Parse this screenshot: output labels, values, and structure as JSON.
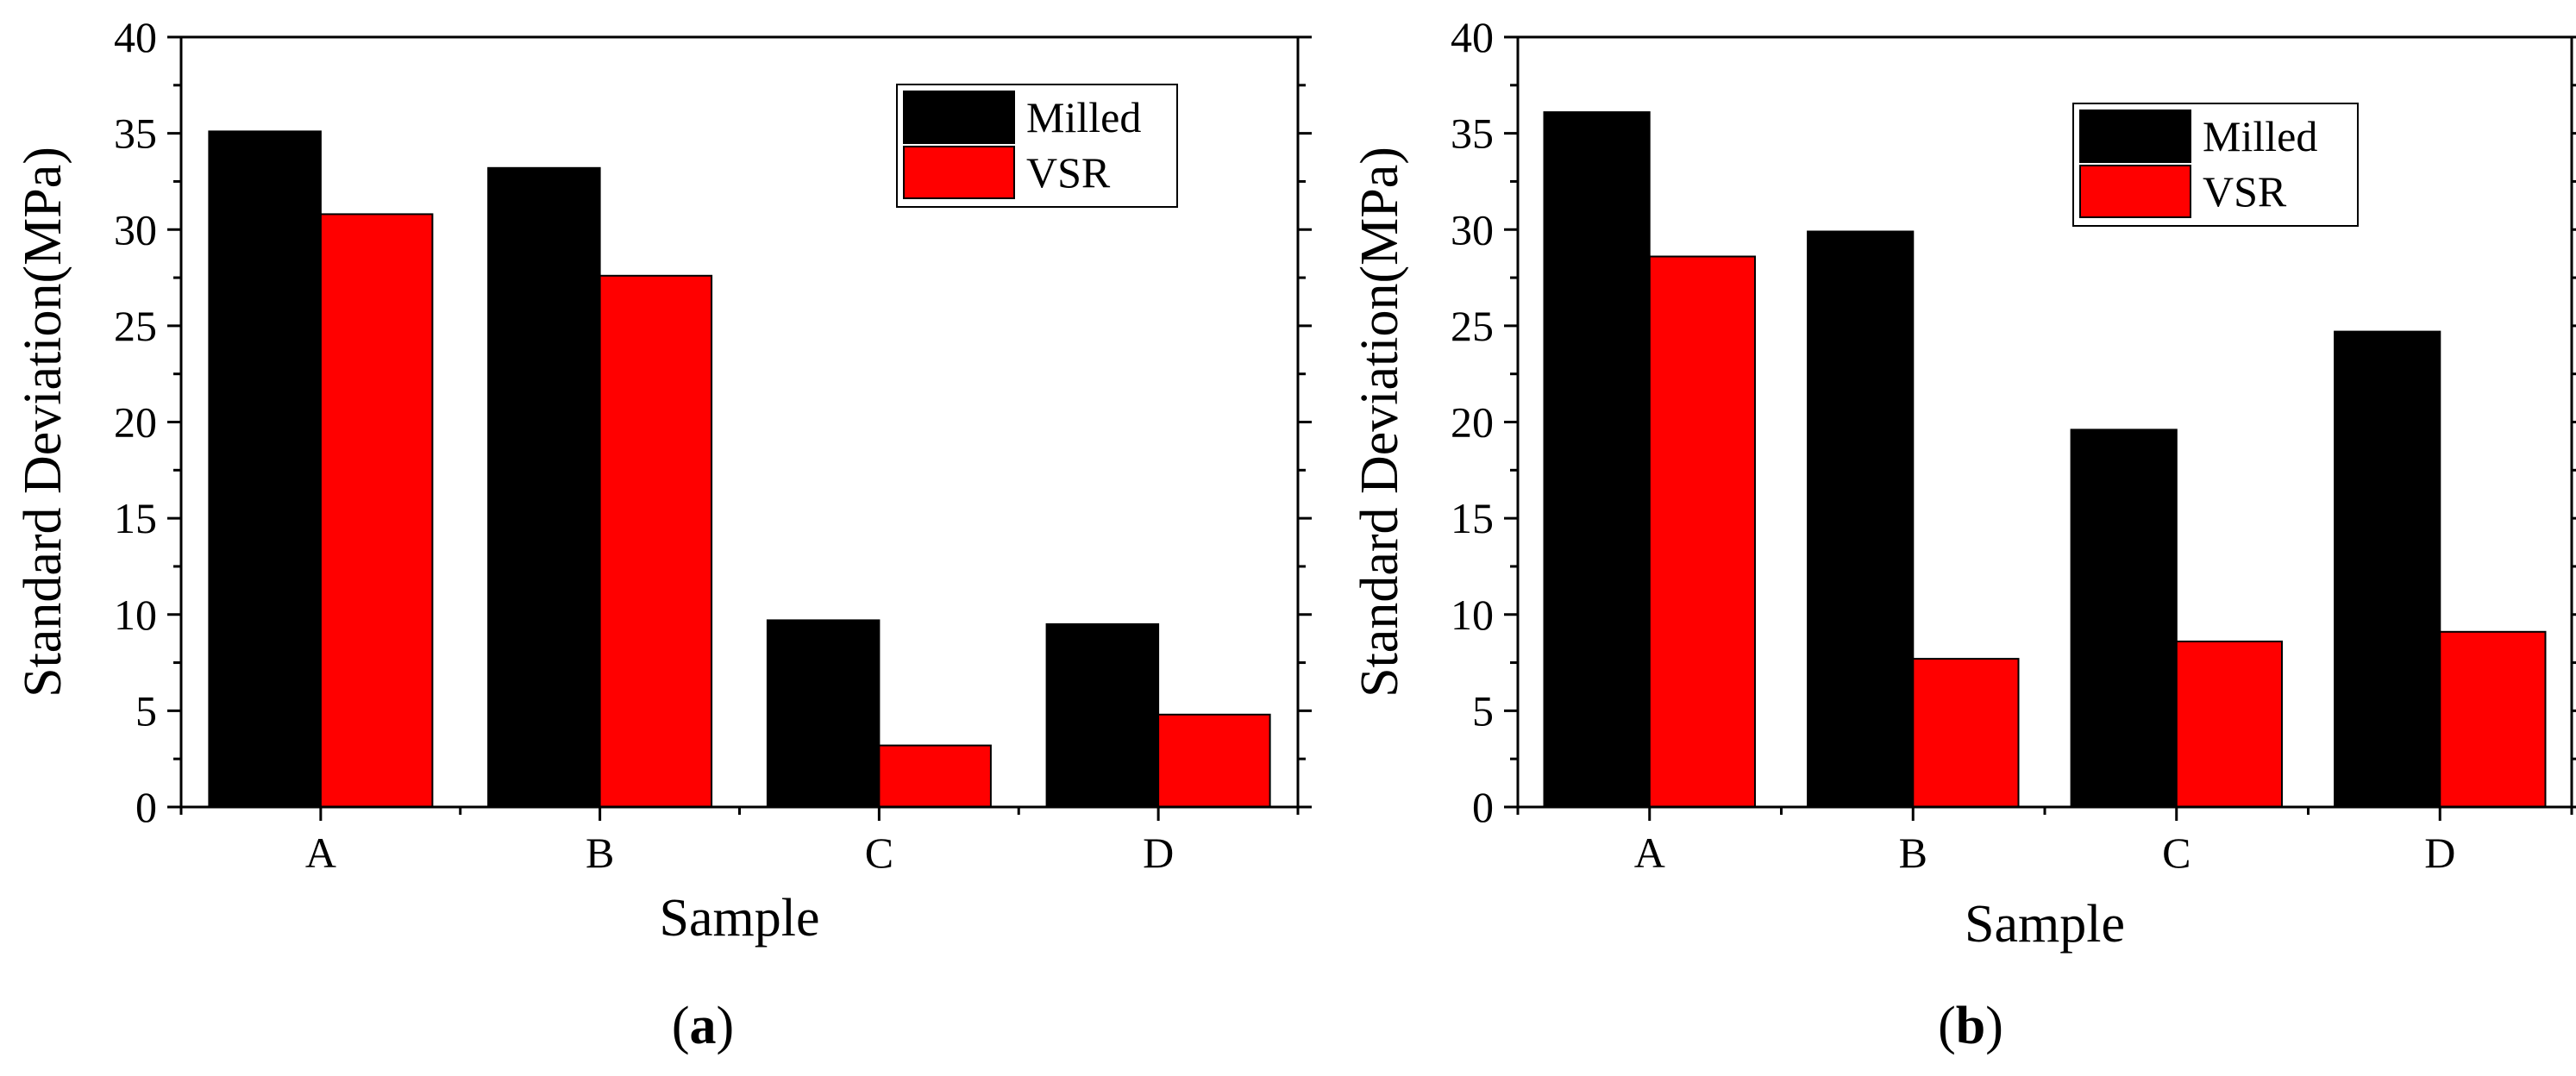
{
  "chart_data": [
    {
      "type": "bar",
      "panel_label": "a",
      "categories": [
        "A",
        "B",
        "C",
        "D"
      ],
      "series": [
        {
          "name": "Milled",
          "color": "#000000",
          "values": [
            35.1,
            33.2,
            9.7,
            9.5
          ]
        },
        {
          "name": "VSR",
          "color": "#ff0000",
          "values": [
            30.8,
            27.6,
            3.2,
            4.8
          ]
        }
      ],
      "xlabel": "Sample",
      "ylabel": "Standard Deviation(MPa)",
      "ylim": [
        0,
        40
      ],
      "yticks": [
        0,
        5,
        10,
        15,
        20,
        25,
        30,
        35,
        40
      ],
      "legend_position": "top-right",
      "grid": false
    },
    {
      "type": "bar",
      "panel_label": "b",
      "categories": [
        "A",
        "B",
        "C",
        "D"
      ],
      "series": [
        {
          "name": "Milled",
          "color": "#000000",
          "values": [
            36.1,
            29.9,
            19.6,
            24.7
          ]
        },
        {
          "name": "VSR",
          "color": "#ff0000",
          "values": [
            28.6,
            7.7,
            8.6,
            9.1
          ]
        }
      ],
      "xlabel": "Sample",
      "ylabel": "Standard Deviation(MPa)",
      "ylim": [
        0,
        40
      ],
      "yticks": [
        0,
        5,
        10,
        15,
        20,
        25,
        30,
        35,
        40
      ],
      "legend_position": "top-right",
      "grid": false
    }
  ]
}
